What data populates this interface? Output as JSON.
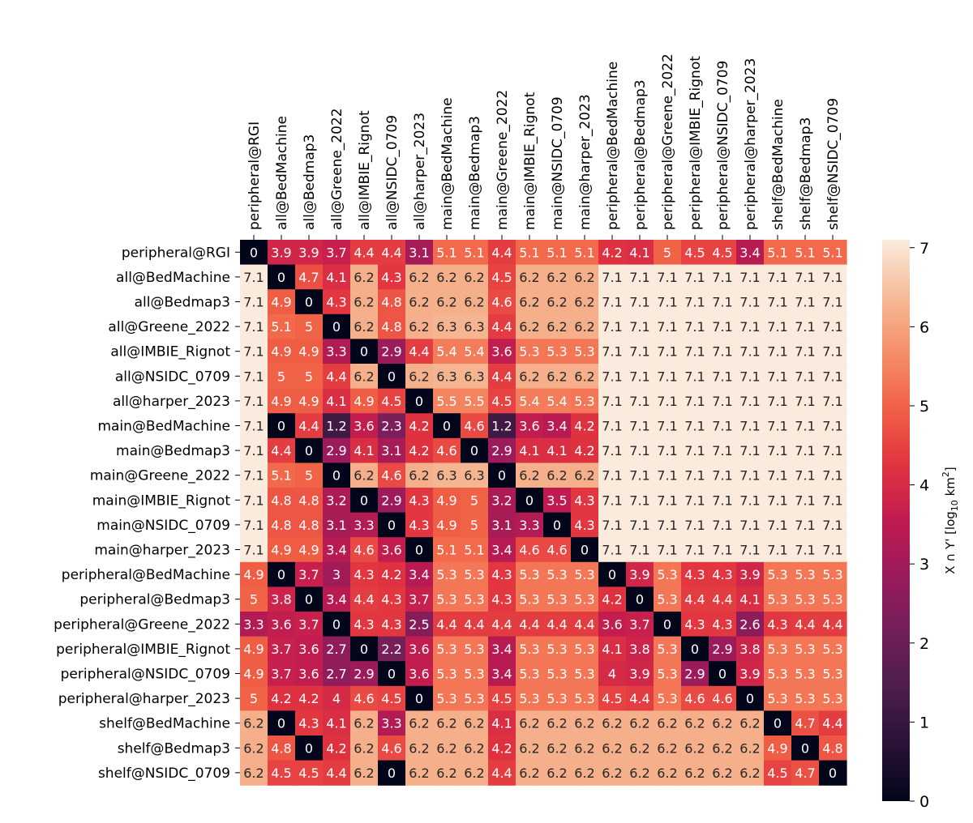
{
  "chart_data": {
    "type": "heatmap",
    "row_labels": [
      "peripheral@RGI",
      "all@BedMachine",
      "all@Bedmap3",
      "all@Greene_2022",
      "all@IMBIE_Rignot",
      "all@NSIDC_0709",
      "all@harper_2023",
      "main@BedMachine",
      "main@Bedmap3",
      "main@Greene_2022",
      "main@IMBIE_Rignot",
      "main@NSIDC_0709",
      "main@harper_2023",
      "peripheral@BedMachine",
      "peripheral@Bedmap3",
      "peripheral@Greene_2022",
      "peripheral@IMBIE_Rignot",
      "peripheral@NSIDC_0709",
      "peripheral@harper_2023",
      "shelf@BedMachine",
      "shelf@Bedmap3",
      "shelf@NSIDC_0709"
    ],
    "col_labels": [
      "peripheral@RGI",
      "all@BedMachine",
      "all@Bedmap3",
      "all@Greene_2022",
      "all@IMBIE_Rignot",
      "all@NSIDC_0709",
      "all@harper_2023",
      "main@BedMachine",
      "main@Bedmap3",
      "main@Greene_2022",
      "main@IMBIE_Rignot",
      "main@NSIDC_0709",
      "main@harper_2023",
      "peripheral@BedMachine",
      "peripheral@Bedmap3",
      "peripheral@Greene_2022",
      "peripheral@IMBIE_Rignot",
      "peripheral@NSIDC_0709",
      "peripheral@harper_2023",
      "shelf@BedMachine",
      "shelf@Bedmap3",
      "shelf@NSIDC_0709"
    ],
    "values": [
      [
        0,
        3.9,
        3.9,
        3.7,
        4.4,
        4.4,
        3.1,
        5.1,
        5.1,
        4.4,
        5.1,
        5.1,
        5.1,
        4.2,
        4.1,
        5,
        4.5,
        4.5,
        3.4,
        5.1,
        5.1,
        5.1
      ],
      [
        7.1,
        0,
        4.7,
        4.1,
        6.2,
        4.3,
        6.2,
        6.2,
        6.2,
        4.5,
        6.2,
        6.2,
        6.2,
        7.1,
        7.1,
        7.1,
        7.1,
        7.1,
        7.1,
        7.1,
        7.1,
        7.1
      ],
      [
        7.1,
        4.9,
        0,
        4.3,
        6.2,
        4.8,
        6.2,
        6.2,
        6.2,
        4.6,
        6.2,
        6.2,
        6.2,
        7.1,
        7.1,
        7.1,
        7.1,
        7.1,
        7.1,
        7.1,
        7.1,
        7.1
      ],
      [
        7.1,
        5.1,
        5,
        0,
        6.2,
        4.8,
        6.2,
        6.3,
        6.3,
        4.4,
        6.2,
        6.2,
        6.2,
        7.1,
        7.1,
        7.1,
        7.1,
        7.1,
        7.1,
        7.1,
        7.1,
        7.1
      ],
      [
        7.1,
        4.9,
        4.9,
        3.3,
        0,
        2.9,
        4.4,
        5.4,
        5.4,
        3.6,
        5.3,
        5.3,
        5.3,
        7.1,
        7.1,
        7.1,
        7.1,
        7.1,
        7.1,
        7.1,
        7.1,
        7.1
      ],
      [
        7.1,
        5,
        5,
        4.4,
        6.2,
        0,
        6.2,
        6.3,
        6.3,
        4.4,
        6.2,
        6.2,
        6.2,
        7.1,
        7.1,
        7.1,
        7.1,
        7.1,
        7.1,
        7.1,
        7.1,
        7.1
      ],
      [
        7.1,
        4.9,
        4.9,
        4.1,
        4.9,
        4.5,
        0,
        5.5,
        5.5,
        4.5,
        5.4,
        5.4,
        5.3,
        7.1,
        7.1,
        7.1,
        7.1,
        7.1,
        7.1,
        7.1,
        7.1,
        7.1
      ],
      [
        7.1,
        0,
        4.4,
        1.2,
        3.6,
        2.3,
        4.2,
        0,
        4.6,
        1.2,
        3.6,
        3.4,
        4.2,
        7.1,
        7.1,
        7.1,
        7.1,
        7.1,
        7.1,
        7.1,
        7.1,
        7.1
      ],
      [
        7.1,
        4.4,
        0,
        2.9,
        4.1,
        3.1,
        4.2,
        4.6,
        0,
        2.9,
        4.1,
        4.1,
        4.2,
        7.1,
        7.1,
        7.1,
        7.1,
        7.1,
        7.1,
        7.1,
        7.1,
        7.1
      ],
      [
        7.1,
        5.1,
        5,
        0,
        6.2,
        4.6,
        6.2,
        6.3,
        6.3,
        0,
        6.2,
        6.2,
        6.2,
        7.1,
        7.1,
        7.1,
        7.1,
        7.1,
        7.1,
        7.1,
        7.1,
        7.1
      ],
      [
        7.1,
        4.8,
        4.8,
        3.2,
        0,
        2.9,
        4.3,
        4.9,
        5,
        3.2,
        0,
        3.5,
        4.3,
        7.1,
        7.1,
        7.1,
        7.1,
        7.1,
        7.1,
        7.1,
        7.1,
        7.1
      ],
      [
        7.1,
        4.8,
        4.8,
        3.1,
        3.3,
        0,
        4.3,
        4.9,
        5,
        3.1,
        3.3,
        0,
        4.3,
        7.1,
        7.1,
        7.1,
        7.1,
        7.1,
        7.1,
        7.1,
        7.1,
        7.1
      ],
      [
        7.1,
        4.9,
        4.9,
        3.4,
        4.6,
        3.6,
        0,
        5.1,
        5.1,
        3.4,
        4.6,
        4.6,
        0,
        7.1,
        7.1,
        7.1,
        7.1,
        7.1,
        7.1,
        7.1,
        7.1,
        7.1
      ],
      [
        4.9,
        0,
        3.7,
        3,
        4.3,
        4.2,
        3.4,
        5.3,
        5.3,
        4.3,
        5.3,
        5.3,
        5.3,
        0,
        3.9,
        5.3,
        4.3,
        4.3,
        3.9,
        5.3,
        5.3,
        5.3
      ],
      [
        5,
        3.8,
        0,
        3.4,
        4.4,
        4.3,
        3.7,
        5.3,
        5.3,
        4.3,
        5.3,
        5.3,
        5.3,
        4.2,
        0,
        5.3,
        4.4,
        4.4,
        4.1,
        5.3,
        5.3,
        5.3
      ],
      [
        3.3,
        3.6,
        3.7,
        0,
        4.3,
        4.3,
        2.5,
        4.4,
        4.4,
        4.4,
        4.4,
        4.4,
        4.4,
        3.6,
        3.7,
        0,
        4.3,
        4.3,
        2.6,
        4.3,
        4.4,
        4.4
      ],
      [
        4.9,
        3.7,
        3.6,
        2.7,
        0,
        2.2,
        3.6,
        5.3,
        5.3,
        3.4,
        5.3,
        5.3,
        5.3,
        4.1,
        3.8,
        5.3,
        0,
        2.9,
        3.8,
        5.3,
        5.3,
        5.3
      ],
      [
        4.9,
        3.7,
        3.6,
        2.7,
        2.9,
        0,
        3.6,
        5.3,
        5.3,
        3.4,
        5.3,
        5.3,
        5.3,
        4,
        3.9,
        5.3,
        2.9,
        0,
        3.9,
        5.3,
        5.3,
        5.3
      ],
      [
        5,
        4.2,
        4.2,
        4,
        4.6,
        4.5,
        0,
        5.3,
        5.3,
        4.5,
        5.3,
        5.3,
        5.3,
        4.5,
        4.4,
        5.3,
        4.6,
        4.6,
        0,
        5.3,
        5.3,
        5.3
      ],
      [
        6.2,
        0,
        4.3,
        4.1,
        6.2,
        3.3,
        6.2,
        6.2,
        6.2,
        4.1,
        6.2,
        6.2,
        6.2,
        6.2,
        6.2,
        6.2,
        6.2,
        6.2,
        6.2,
        0,
        4.7,
        4.4
      ],
      [
        6.2,
        4.8,
        0,
        4.2,
        6.2,
        4.6,
        6.2,
        6.2,
        6.2,
        4.2,
        6.2,
        6.2,
        6.2,
        6.2,
        6.2,
        6.2,
        6.2,
        6.2,
        6.2,
        4.9,
        0,
        4.8
      ],
      [
        6.2,
        4.5,
        4.5,
        4.4,
        6.2,
        0,
        6.2,
        6.2,
        6.2,
        4.4,
        6.2,
        6.2,
        6.2,
        6.2,
        6.2,
        6.2,
        6.2,
        6.2,
        6.2,
        4.5,
        4.7,
        0
      ]
    ],
    "colorbar": {
      "label_prefix": "X ∩ Y' [log",
      "label_sub": "10",
      "label_mid": " km",
      "label_sup": "2",
      "label_suffix": "]",
      "ticks": [
        0,
        1,
        2,
        3,
        4,
        5,
        6,
        7
      ],
      "range": [
        0,
        7.1
      ],
      "colormap": "rocket"
    }
  }
}
